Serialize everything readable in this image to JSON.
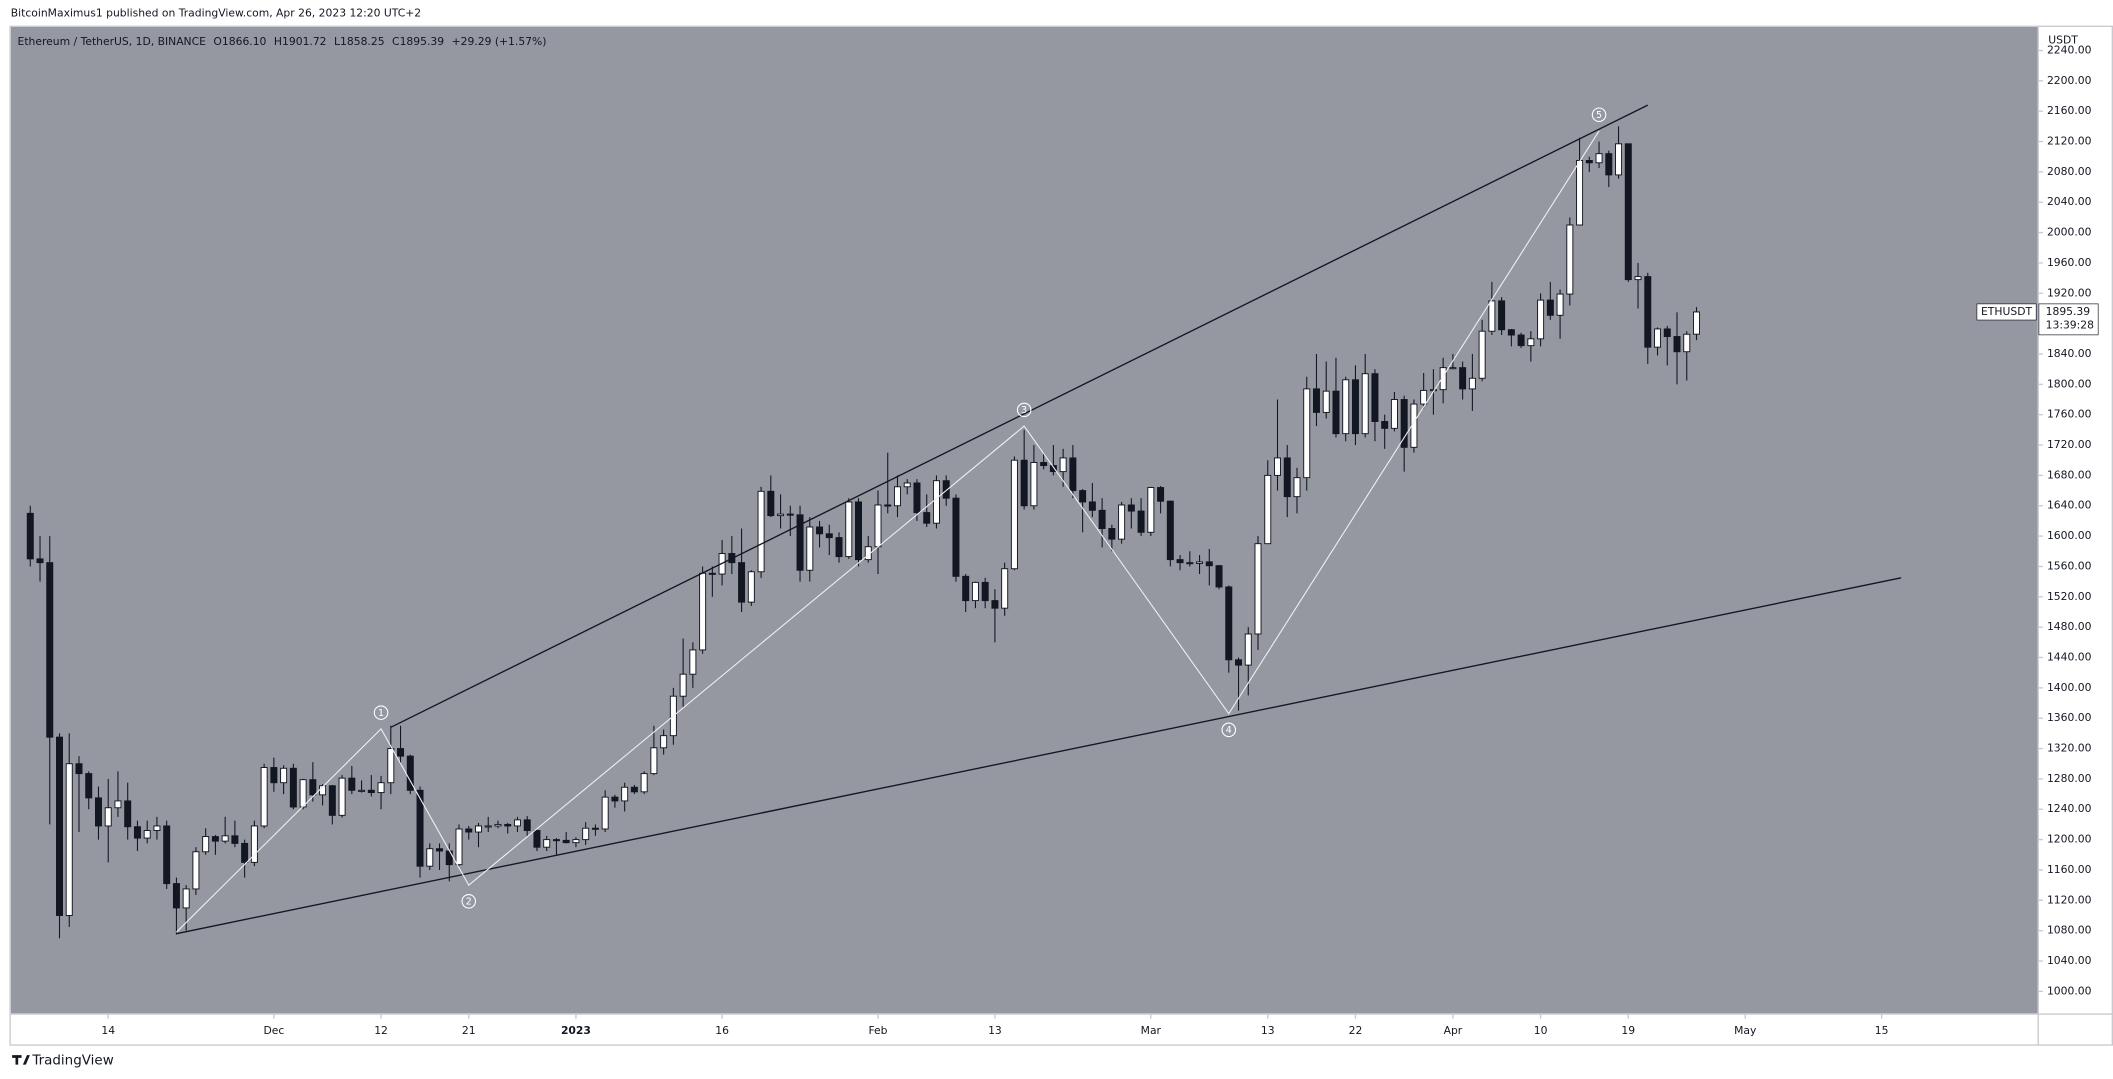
{
  "header": {
    "published": "BitcoinMaximus1 published on TradingView.com, Apr 26, 2023 12:20 UTC+2"
  },
  "footer": {
    "logo": "TradingView"
  },
  "chart_data": {
    "type": "candlestick",
    "legend": {
      "symbol": "Ethereum / TetherUS, 1D, BINANCE",
      "ohlc": [
        {
          "key": "O",
          "value": "1866.10"
        },
        {
          "key": "H",
          "value": "1901.72"
        },
        {
          "key": "L",
          "value": "1858.25"
        },
        {
          "key": "C",
          "value": "1895.39"
        }
      ],
      "change": "+29.29 (+1.57%)"
    },
    "y_axis_unit": "USDT",
    "price_tag": {
      "symbol": "ETHUSDT",
      "countdown": "13:39:28"
    },
    "up_color": "#ffffff",
    "down_color": "#131722",
    "background": "#9598a1",
    "grid": false,
    "xlim": [
      "2022-11-04",
      "2023-05-31"
    ],
    "xticks": [
      {
        "value": "2022-11-14",
        "label": "14"
      },
      {
        "value": "2022-12-01",
        "label": "Dec"
      },
      {
        "value": "2022-12-12",
        "label": "12"
      },
      {
        "value": "2022-12-21",
        "label": "21"
      },
      {
        "value": "2023-01-01",
        "label": "2023"
      },
      {
        "value": "2023-01-16",
        "label": "16"
      },
      {
        "value": "2023-02-01",
        "label": "Feb"
      },
      {
        "value": "2023-02-13",
        "label": "13"
      },
      {
        "value": "2023-03-01",
        "label": "Mar"
      },
      {
        "value": "2023-03-13",
        "label": "13"
      },
      {
        "value": "2023-03-22",
        "label": "22"
      },
      {
        "value": "2023-04-01",
        "label": "Apr"
      },
      {
        "value": "2023-04-10",
        "label": "10"
      },
      {
        "value": "2023-04-19",
        "label": "19"
      },
      {
        "value": "2023-05-01",
        "label": "May"
      },
      {
        "value": "2023-05-15",
        "label": "15"
      }
    ],
    "ylim": [
      971,
      2271
    ],
    "yticks": [
      {
        "value": 1000,
        "label": "1000.00"
      },
      {
        "value": 1040,
        "label": "1040.00"
      },
      {
        "value": 1080,
        "label": "1080.00"
      },
      {
        "value": 1120,
        "label": "1120.00"
      },
      {
        "value": 1160,
        "label": "1160.00"
      },
      {
        "value": 1200,
        "label": "1200.00"
      },
      {
        "value": 1240,
        "label": "1240.00"
      },
      {
        "value": 1280,
        "label": "1280.00"
      },
      {
        "value": 1320,
        "label": "1320.00"
      },
      {
        "value": 1360,
        "label": "1360.00"
      },
      {
        "value": 1400,
        "label": "1400.00"
      },
      {
        "value": 1440,
        "label": "1440.00"
      },
      {
        "value": 1480,
        "label": "1480.00"
      },
      {
        "value": 1520,
        "label": "1520.00"
      },
      {
        "value": 1560,
        "label": "1560.00"
      },
      {
        "value": 1600,
        "label": "1600.00"
      },
      {
        "value": 1640,
        "label": "1640.00"
      },
      {
        "value": 1680,
        "label": "1680.00"
      },
      {
        "value": 1720,
        "label": "1720.00"
      },
      {
        "value": 1760,
        "label": "1760.00"
      },
      {
        "value": 1800,
        "label": "1800.00"
      },
      {
        "value": 1840,
        "label": "1840.00"
      },
      {
        "value": 1880,
        "label": "1880.00"
      },
      {
        "value": 1920,
        "label": "1920.00"
      },
      {
        "value": 1960,
        "label": "1960.00"
      },
      {
        "value": 2000,
        "label": "2000.00"
      },
      {
        "value": 2040,
        "label": "2040.00"
      },
      {
        "value": 2080,
        "label": "2080.00"
      },
      {
        "value": 2120,
        "label": "2120.00"
      },
      {
        "value": 2160,
        "label": "2160.00"
      },
      {
        "value": 2200,
        "label": "2200.00"
      },
      {
        "value": 2240,
        "label": "2240.00"
      }
    ],
    "x": [
      "2022-11-06",
      "2022-11-07",
      "2022-11-08",
      "2022-11-09",
      "2022-11-10",
      "2022-11-11",
      "2022-11-12",
      "2022-11-13",
      "2022-11-14",
      "2022-11-15",
      "2022-11-16",
      "2022-11-17",
      "2022-11-18",
      "2022-11-19",
      "2022-11-20",
      "2022-11-21",
      "2022-11-22",
      "2022-11-23",
      "2022-11-24",
      "2022-11-25",
      "2022-11-26",
      "2022-11-27",
      "2022-11-28",
      "2022-11-29",
      "2022-11-30",
      "2022-12-01",
      "2022-12-02",
      "2022-12-03",
      "2022-12-04",
      "2022-12-05",
      "2022-12-06",
      "2022-12-07",
      "2022-12-08",
      "2022-12-09",
      "2022-12-10",
      "2022-12-11",
      "2022-12-12",
      "2022-12-13",
      "2022-12-14",
      "2022-12-15",
      "2022-12-16",
      "2022-12-17",
      "2022-12-18",
      "2022-12-19",
      "2022-12-20",
      "2022-12-21",
      "2022-12-22",
      "2022-12-23",
      "2022-12-24",
      "2022-12-25",
      "2022-12-26",
      "2022-12-27",
      "2022-12-28",
      "2022-12-29",
      "2022-12-30",
      "2022-12-31",
      "2023-01-01",
      "2023-01-02",
      "2023-01-03",
      "2023-01-04",
      "2023-01-05",
      "2023-01-06",
      "2023-01-07",
      "2023-01-08",
      "2023-01-09",
      "2023-01-10",
      "2023-01-11",
      "2023-01-12",
      "2023-01-13",
      "2023-01-14",
      "2023-01-15",
      "2023-01-16",
      "2023-01-17",
      "2023-01-18",
      "2023-01-19",
      "2023-01-20",
      "2023-01-21",
      "2023-01-22",
      "2023-01-23",
      "2023-01-24",
      "2023-01-25",
      "2023-01-26",
      "2023-01-27",
      "2023-01-28",
      "2023-01-29",
      "2023-01-30",
      "2023-01-31",
      "2023-02-01",
      "2023-02-02",
      "2023-02-03",
      "2023-02-04",
      "2023-02-05",
      "2023-02-06",
      "2023-02-07",
      "2023-02-08",
      "2023-02-09",
      "2023-02-10",
      "2023-02-11",
      "2023-02-12",
      "2023-02-13",
      "2023-02-14",
      "2023-02-15",
      "2023-02-16",
      "2023-02-17",
      "2023-02-18",
      "2023-02-19",
      "2023-02-20",
      "2023-02-21",
      "2023-02-22",
      "2023-02-23",
      "2023-02-24",
      "2023-02-25",
      "2023-02-26",
      "2023-02-27",
      "2023-02-28",
      "2023-03-01",
      "2023-03-02",
      "2023-03-03",
      "2023-03-04",
      "2023-03-05",
      "2023-03-06",
      "2023-03-07",
      "2023-03-08",
      "2023-03-09",
      "2023-03-10",
      "2023-03-11",
      "2023-03-12",
      "2023-03-13",
      "2023-03-14",
      "2023-03-15",
      "2023-03-16",
      "2023-03-17",
      "2023-03-18",
      "2023-03-19",
      "2023-03-20",
      "2023-03-21",
      "2023-03-22",
      "2023-03-23",
      "2023-03-24",
      "2023-03-25",
      "2023-03-26",
      "2023-03-27",
      "2023-03-28",
      "2023-03-29",
      "2023-03-30",
      "2023-03-31",
      "2023-04-01",
      "2023-04-02",
      "2023-04-03",
      "2023-04-04",
      "2023-04-05",
      "2023-04-06",
      "2023-04-07",
      "2023-04-08",
      "2023-04-09",
      "2023-04-10",
      "2023-04-11",
      "2023-04-12",
      "2023-04-13",
      "2023-04-14",
      "2023-04-15",
      "2023-04-16",
      "2023-04-17",
      "2023-04-18",
      "2023-04-19",
      "2023-04-20",
      "2023-04-21",
      "2023-04-22",
      "2023-04-23",
      "2023-04-24",
      "2023-04-25",
      "2023-04-26"
    ],
    "open": [
      1630,
      1570,
      1565,
      1335,
      1100,
      1300,
      1287,
      1255,
      1218,
      1242,
      1251,
      1217,
      1202,
      1212,
      1218,
      1142,
      1110,
      1135,
      1184,
      1204,
      1198,
      1205,
      1195,
      1170,
      1218,
      1295,
      1275,
      1294,
      1243,
      1279,
      1259,
      1271,
      1232,
      1281,
      1265,
      1265,
      1262,
      1275,
      1320,
      1310,
      1265,
      1165,
      1188,
      1185,
      1167,
      1214,
      1210,
      1218,
      1218,
      1220,
      1218,
      1226,
      1212,
      1190,
      1200,
      1199,
      1196,
      1200,
      1215,
      1214,
      1256,
      1251,
      1269,
      1263,
      1287,
      1321,
      1337,
      1389,
      1418,
      1450,
      1551,
      1550,
      1577,
      1565,
      1513,
      1553,
      1659,
      1627,
      1629,
      1628,
      1555,
      1612,
      1603,
      1598,
      1573,
      1645,
      1569,
      1586,
      1641,
      1640,
      1665,
      1670,
      1631,
      1617,
      1673,
      1650,
      1547,
      1515,
      1539,
      1515,
      1505,
      1557,
      1700,
      1640,
      1697,
      1693,
      1685,
      1703,
      1660,
      1645,
      1634,
      1610,
      1596,
      1641,
      1633,
      1605,
      1664,
      1646,
      1569,
      1565,
      1564,
      1566,
      1561,
      1533,
      1437,
      1430,
      1471,
      1590,
      1680,
      1703,
      1652,
      1677,
      1794,
      1763,
      1791,
      1735,
      1806,
      1735,
      1814,
      1751,
      1742,
      1780,
      1717,
      1774,
      1792,
      1793,
      1822,
      1822,
      1794,
      1808,
      1870,
      1910,
      1872,
      1865,
      1851,
      1860,
      1911,
      1891,
      1919,
      2010,
      2095,
      2092,
      2104,
      2076,
      2117,
      1938,
      1942,
      1849,
      1873,
      1863,
      1843,
      1866.1
    ],
    "high": [
      1640,
      1600,
      1600,
      1340,
      1340,
      1310,
      1290,
      1270,
      1280,
      1290,
      1275,
      1225,
      1225,
      1230,
      1225,
      1150,
      1140,
      1190,
      1215,
      1206,
      1230,
      1225,
      1200,
      1225,
      1300,
      1308,
      1298,
      1300,
      1280,
      1302,
      1273,
      1272,
      1285,
      1297,
      1278,
      1285,
      1284,
      1350,
      1350,
      1312,
      1270,
      1195,
      1195,
      1195,
      1220,
      1218,
      1222,
      1230,
      1225,
      1222,
      1230,
      1231,
      1213,
      1205,
      1202,
      1210,
      1203,
      1223,
      1220,
      1265,
      1259,
      1275,
      1272,
      1290,
      1350,
      1345,
      1400,
      1465,
      1460,
      1560,
      1560,
      1595,
      1600,
      1610,
      1555,
      1665,
      1680,
      1655,
      1640,
      1640,
      1625,
      1620,
      1615,
      1605,
      1650,
      1650,
      1600,
      1660,
      1710,
      1680,
      1675,
      1675,
      1655,
      1680,
      1680,
      1655,
      1550,
      1540,
      1545,
      1530,
      1565,
      1705,
      1740,
      1720,
      1710,
      1720,
      1715,
      1720,
      1662,
      1670,
      1650,
      1615,
      1645,
      1650,
      1650,
      1665,
      1666,
      1647,
      1575,
      1580,
      1575,
      1583,
      1562,
      1535,
      1440,
      1480,
      1600,
      1700,
      1780,
      1720,
      1690,
      1810,
      1840,
      1830,
      1835,
      1810,
      1825,
      1840,
      1820,
      1760,
      1790,
      1785,
      1780,
      1815,
      1820,
      1835,
      1840,
      1830,
      1840,
      1885,
      1935,
      1915,
      1873,
      1868,
      1870,
      1920,
      1935,
      1925,
      2020,
      2125,
      2100,
      2120,
      2108,
      2140,
      2117,
      1960,
      1947,
      1875,
      1877,
      1895,
      1870,
      1901.72
    ],
    "low": [
      1560,
      1540,
      1220,
      1070,
      1085,
      1210,
      1240,
      1200,
      1170,
      1230,
      1200,
      1185,
      1195,
      1200,
      1135,
      1075,
      1080,
      1127,
      1180,
      1180,
      1195,
      1190,
      1150,
      1165,
      1215,
      1263,
      1260,
      1240,
      1240,
      1250,
      1245,
      1220,
      1229,
      1260,
      1262,
      1257,
      1240,
      1260,
      1300,
      1260,
      1150,
      1160,
      1160,
      1145,
      1165,
      1200,
      1190,
      1210,
      1215,
      1208,
      1210,
      1205,
      1185,
      1185,
      1180,
      1195,
      1190,
      1193,
      1205,
      1210,
      1242,
      1237,
      1260,
      1260,
      1285,
      1312,
      1325,
      1375,
      1400,
      1445,
      1520,
      1535,
      1550,
      1500,
      1508,
      1545,
      1625,
      1610,
      1600,
      1540,
      1540,
      1585,
      1575,
      1565,
      1570,
      1560,
      1565,
      1550,
      1630,
      1625,
      1655,
      1620,
      1612,
      1610,
      1640,
      1540,
      1500,
      1505,
      1505,
      1460,
      1495,
      1555,
      1635,
      1635,
      1688,
      1680,
      1665,
      1650,
      1605,
      1625,
      1585,
      1580,
      1590,
      1610,
      1600,
      1600,
      1630,
      1560,
      1555,
      1560,
      1550,
      1535,
      1530,
      1420,
      1370,
      1390,
      1450,
      1590,
      1660,
      1625,
      1630,
      1660,
      1745,
      1755,
      1730,
      1725,
      1720,
      1730,
      1725,
      1715,
      1738,
      1685,
      1710,
      1768,
      1760,
      1775,
      1820,
      1780,
      1765,
      1804,
      1865,
      1865,
      1850,
      1848,
      1830,
      1850,
      1885,
      1860,
      1904,
      2010,
      2080,
      2085,
      2060,
      2071,
      1935,
      1900,
      1827,
      1838,
      1825,
      1800,
      1805,
      1858.25
    ],
    "close": [
      1570,
      1565,
      1335,
      1100,
      1300,
      1287,
      1255,
      1218,
      1242,
      1251,
      1217,
      1202,
      1212,
      1218,
      1142,
      1110,
      1135,
      1184,
      1204,
      1198,
      1205,
      1195,
      1170,
      1218,
      1295,
      1275,
      1294,
      1243,
      1279,
      1259,
      1271,
      1232,
      1281,
      1265,
      1265,
      1262,
      1275,
      1320,
      1310,
      1265,
      1165,
      1188,
      1185,
      1167,
      1214,
      1210,
      1218,
      1218,
      1220,
      1218,
      1226,
      1212,
      1190,
      1200,
      1199,
      1196,
      1200,
      1215,
      1214,
      1256,
      1251,
      1269,
      1263,
      1287,
      1321,
      1337,
      1389,
      1418,
      1450,
      1551,
      1550,
      1577,
      1565,
      1513,
      1553,
      1659,
      1627,
      1629,
      1628,
      1555,
      1612,
      1603,
      1598,
      1573,
      1645,
      1569,
      1586,
      1641,
      1640,
      1665,
      1670,
      1631,
      1617,
      1673,
      1650,
      1547,
      1515,
      1539,
      1515,
      1505,
      1557,
      1700,
      1640,
      1697,
      1693,
      1685,
      1703,
      1660,
      1645,
      1634,
      1610,
      1596,
      1641,
      1633,
      1605,
      1664,
      1646,
      1569,
      1565,
      1564,
      1566,
      1561,
      1533,
      1437,
      1430,
      1471,
      1590,
      1680,
      1703,
      1652,
      1677,
      1794,
      1763,
      1791,
      1735,
      1806,
      1735,
      1814,
      1751,
      1742,
      1780,
      1717,
      1774,
      1792,
      1793,
      1822,
      1822,
      1794,
      1808,
      1870,
      1910,
      1872,
      1865,
      1851,
      1860,
      1911,
      1891,
      1919,
      2010,
      2095,
      2092,
      2104,
      2076,
      2117,
      1938,
      1942,
      1849,
      1873,
      1863,
      1843,
      1866,
      1895.39
    ],
    "trend_lines": [
      {
        "points": [
          {
            "x": "2022-12-13",
            "y": 1348
          },
          {
            "x": "2023-04-21",
            "y": 2168
          }
        ]
      },
      {
        "points": [
          {
            "x": "2022-11-21",
            "y": 1076
          },
          {
            "x": "2023-05-17",
            "y": 1545
          }
        ]
      }
    ],
    "wave": {
      "points": [
        {
          "x": "2022-11-21",
          "y": 1078
        },
        {
          "x": "2022-12-12",
          "y": 1346
        },
        {
          "x": "2022-12-21",
          "y": 1140
        },
        {
          "x": "2023-02-16",
          "y": 1745
        },
        {
          "x": "2023-03-09",
          "y": 1366
        },
        {
          "x": "2023-04-16",
          "y": 2134
        }
      ],
      "labels": [
        "1",
        "2",
        "3",
        "4",
        "5"
      ]
    }
  }
}
